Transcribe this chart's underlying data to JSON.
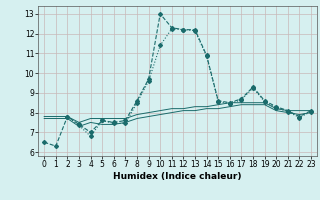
{
  "xlabel": "Humidex (Indice chaleur)",
  "bg_color": "#d6f0f0",
  "line_color": "#1a6b6b",
  "grid_color": "#c0d8d8",
  "xlim": [
    -0.5,
    23.5
  ],
  "ylim": [
    5.8,
    13.4
  ],
  "xticks": [
    0,
    1,
    2,
    3,
    4,
    5,
    6,
    7,
    8,
    9,
    10,
    11,
    12,
    13,
    14,
    15,
    16,
    17,
    18,
    19,
    20,
    21,
    22,
    23
  ],
  "yticks": [
    6,
    7,
    8,
    9,
    10,
    11,
    12,
    13
  ],
  "line1_x": [
    0,
    1,
    2,
    3,
    4,
    5,
    6,
    7,
    8,
    9,
    10,
    11,
    12,
    13,
    14,
    15,
    16,
    17,
    18,
    19,
    20,
    21,
    22,
    23
  ],
  "line1_y": [
    6.5,
    6.3,
    7.8,
    7.4,
    7.0,
    7.6,
    7.5,
    7.6,
    8.6,
    9.7,
    13.0,
    12.3,
    12.2,
    12.2,
    10.9,
    8.6,
    8.5,
    8.7,
    9.3,
    8.6,
    8.3,
    8.1,
    7.8,
    8.1
  ],
  "line2_x": [
    0,
    1,
    2,
    3,
    4,
    5,
    6,
    7,
    8,
    9,
    10,
    11,
    12,
    13,
    14,
    15,
    16,
    17,
    18,
    19,
    20,
    21,
    22,
    23
  ],
  "line2_y": [
    7.8,
    7.8,
    7.8,
    7.5,
    7.7,
    7.7,
    7.7,
    7.7,
    7.9,
    8.0,
    8.1,
    8.2,
    8.2,
    8.3,
    8.3,
    8.4,
    8.5,
    8.5,
    8.5,
    8.5,
    8.2,
    8.1,
    8.1,
    8.1
  ],
  "line3_x": [
    0,
    1,
    2,
    3,
    4,
    5,
    6,
    7,
    8,
    9,
    10,
    11,
    12,
    13,
    14,
    15,
    16,
    17,
    18,
    19,
    20,
    21,
    22,
    23
  ],
  "line3_y": [
    7.7,
    7.7,
    7.7,
    7.3,
    7.5,
    7.4,
    7.4,
    7.5,
    7.7,
    7.8,
    7.9,
    8.0,
    8.1,
    8.1,
    8.2,
    8.2,
    8.3,
    8.4,
    8.4,
    8.4,
    8.1,
    8.0,
    7.9,
    8.0
  ],
  "line4_x": [
    2,
    3,
    4,
    5,
    6,
    7,
    8,
    9,
    10,
    11,
    12,
    13,
    14,
    15,
    16,
    17,
    18,
    19,
    20,
    21,
    22,
    23
  ],
  "line4_y": [
    7.8,
    7.35,
    6.8,
    7.6,
    7.45,
    7.45,
    8.5,
    9.6,
    11.4,
    12.25,
    12.2,
    12.15,
    10.85,
    8.55,
    8.45,
    8.65,
    9.25,
    8.55,
    8.25,
    8.05,
    7.75,
    8.05
  ]
}
